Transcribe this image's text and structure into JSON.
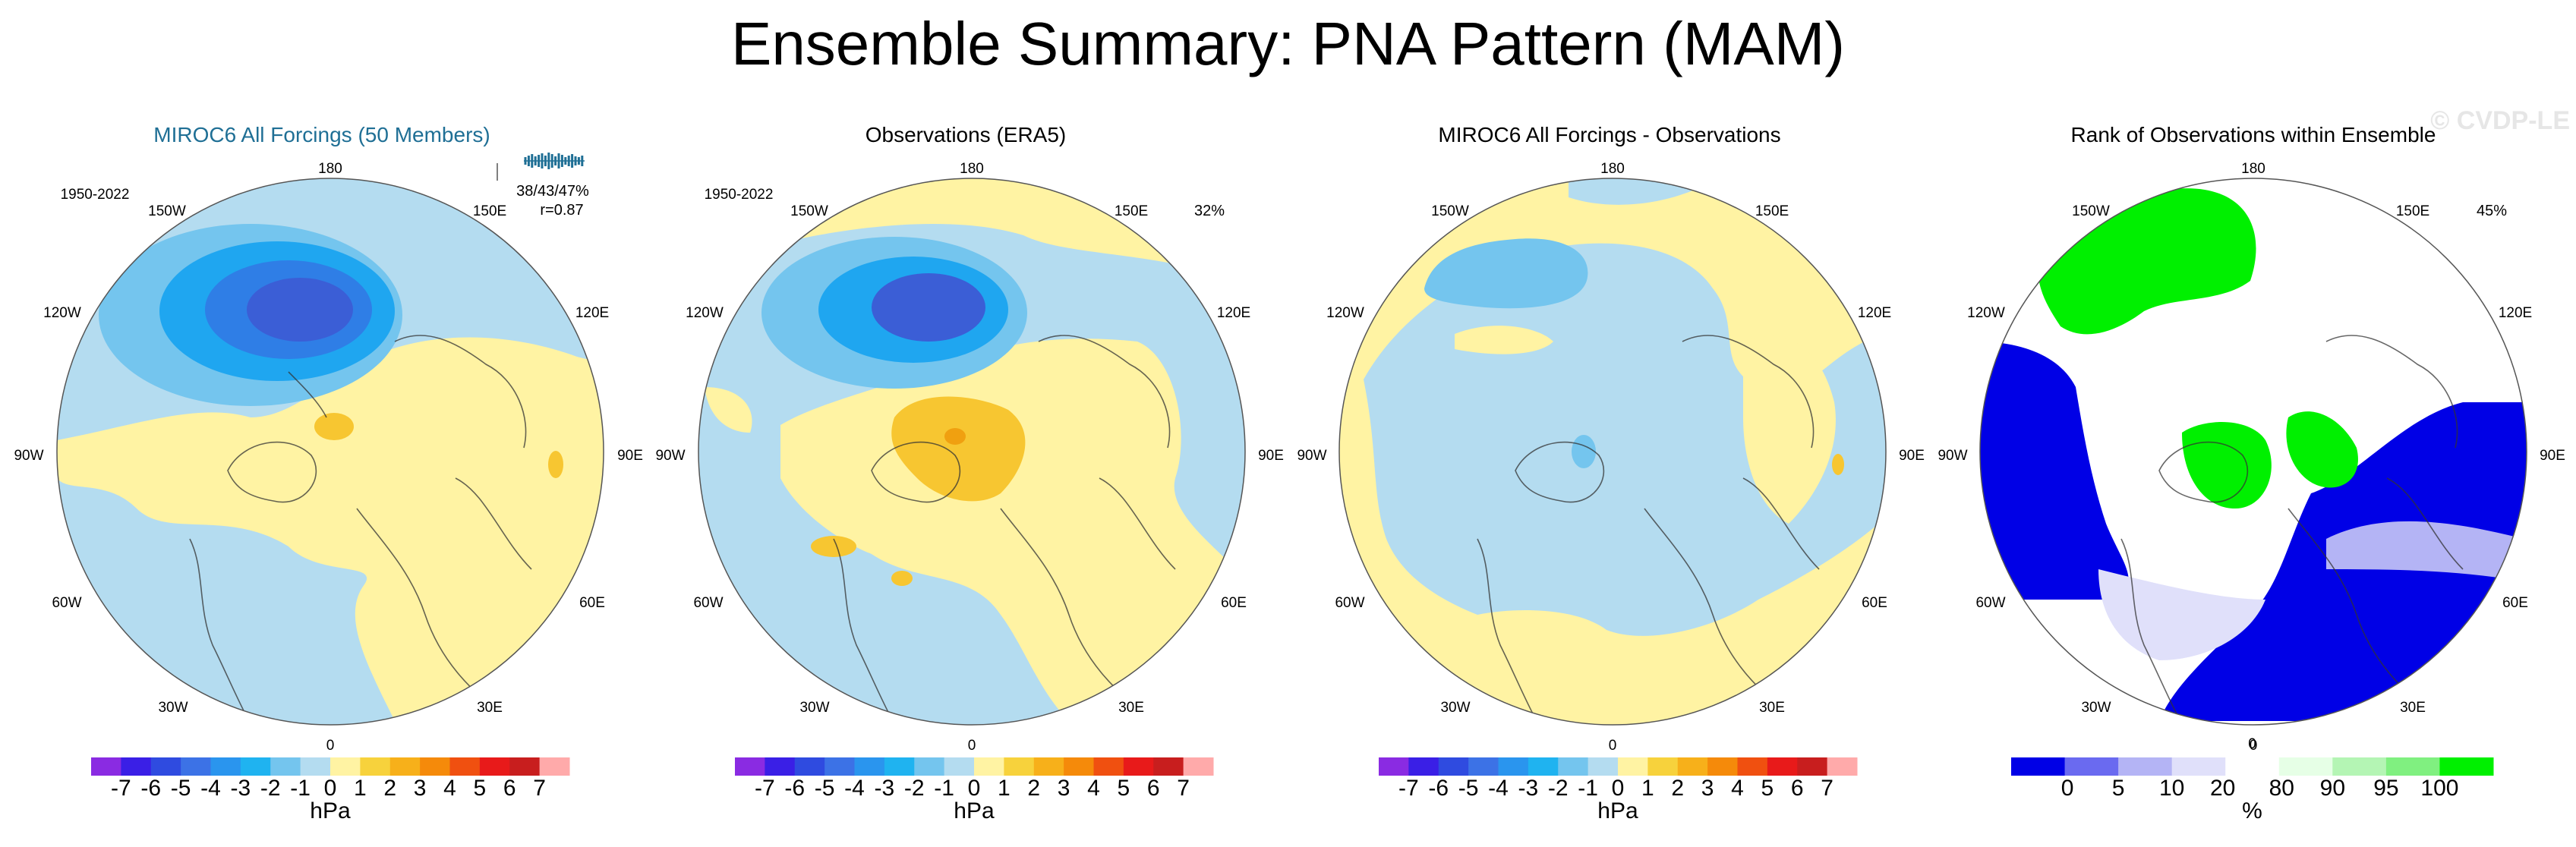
{
  "title": "Ensemble Summary: PNA Pattern (MAM)",
  "watermark": "© CVDP-LE",
  "colors": {
    "model_title": "#1f6f95",
    "land": "#f7f0a0",
    "ocean_neg1": "#b4dcf0",
    "neg2": "#74c5ee",
    "neg3": "#1fa6f0",
    "neg4": "#2f7ee6",
    "neg5": "#3b5ed6",
    "pos1": "#fff3a3",
    "pos2": "#f7c631",
    "pos3": "#f0a010",
    "rank_blue": "#0000e6",
    "rank_green": "#00f000"
  },
  "lon_labels": [
    "180",
    "150E",
    "120E",
    "90E",
    "60E",
    "30E",
    "0",
    "30W",
    "60W",
    "90W",
    "120W",
    "150W"
  ],
  "panels": [
    {
      "title": "MIROC6 All Forcings (50 Members)",
      "period": "1950-2022",
      "stats_line1": "38/43/47%",
      "stats_line2": "r=0.87",
      "pct": "",
      "colorbar": {
        "kind": "hpa",
        "labels": [
          "-7",
          "-6",
          "-5",
          "-4",
          "-3",
          "-2",
          "-1",
          "0",
          "1",
          "2",
          "3",
          "4",
          "5",
          "6",
          "7"
        ],
        "unit": "hPa",
        "colors": [
          "#8a2be2",
          "#3a1fe6",
          "#2f4be0",
          "#3c72e6",
          "#2a95ee",
          "#1fb3f0",
          "#74c5ee",
          "#b4dcf0",
          "#fff3a3",
          "#f7d23c",
          "#f7b01a",
          "#f58a0a",
          "#f05010",
          "#e81a1a",
          "#c81e1e",
          "#ffaaaa"
        ]
      }
    },
    {
      "title": "Observations (ERA5)",
      "period": "1950-2022",
      "stats_line1": "",
      "stats_line2": "",
      "pct": "32%",
      "colorbar": {
        "kind": "hpa",
        "labels": [
          "-7",
          "-6",
          "-5",
          "-4",
          "-3",
          "-2",
          "-1",
          "0",
          "1",
          "2",
          "3",
          "4",
          "5",
          "6",
          "7"
        ],
        "unit": "hPa",
        "colors": [
          "#8a2be2",
          "#3a1fe6",
          "#2f4be0",
          "#3c72e6",
          "#2a95ee",
          "#1fb3f0",
          "#74c5ee",
          "#b4dcf0",
          "#fff3a3",
          "#f7d23c",
          "#f7b01a",
          "#f58a0a",
          "#f05010",
          "#e81a1a",
          "#c81e1e",
          "#ffaaaa"
        ]
      }
    },
    {
      "title": "MIROC6 All Forcings - Observations",
      "period": "",
      "stats_line1": "",
      "stats_line2": "",
      "pct": "",
      "colorbar": {
        "kind": "hpa",
        "labels": [
          "-7",
          "-6",
          "-5",
          "-4",
          "-3",
          "-2",
          "-1",
          "0",
          "1",
          "2",
          "3",
          "4",
          "5",
          "6",
          "7"
        ],
        "unit": "hPa",
        "colors": [
          "#8a2be2",
          "#3a1fe6",
          "#2f4be0",
          "#3c72e6",
          "#2a95ee",
          "#1fb3f0",
          "#74c5ee",
          "#b4dcf0",
          "#fff3a3",
          "#f7d23c",
          "#f7b01a",
          "#f58a0a",
          "#f05010",
          "#e81a1a",
          "#c81e1e",
          "#ffaaaa"
        ]
      }
    },
    {
      "title": "Rank of Observations within Ensemble",
      "period": "",
      "stats_line1": "",
      "stats_line2": "",
      "pct": "45%",
      "colorbar": {
        "kind": "rank",
        "labels": [
          "0",
          "5",
          "10",
          "20",
          "80",
          "90",
          "95",
          "100"
        ],
        "center_label": "0",
        "unit": "%",
        "colors": [
          "#0000e6",
          "#6a6af0",
          "#b4b4f5",
          "#e0e0fa",
          "#ffffff",
          "#e6ffe6",
          "#b4f5b4",
          "#80f080",
          "#00f000"
        ]
      }
    }
  ]
}
